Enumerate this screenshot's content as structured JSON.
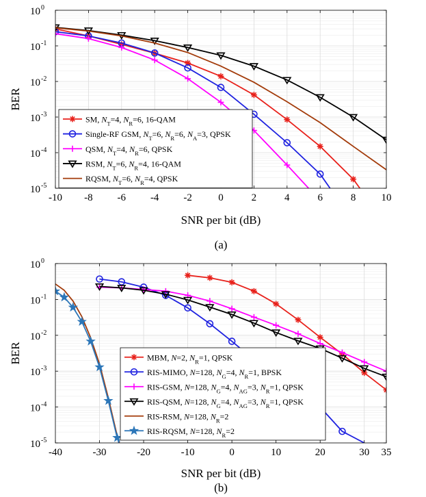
{
  "chart_data": [
    {
      "type": "line",
      "panel": "(a)",
      "xlabel": "SNR per bit (dB)",
      "ylabel": "BER",
      "xlim": [
        -10,
        10
      ],
      "ylim": [
        1e-05,
        1
      ],
      "yscale": "log",
      "xticks": [
        -10,
        -8,
        -6,
        -4,
        -2,
        0,
        2,
        4,
        6,
        8,
        10
      ],
      "xtick_labels": [
        "-10",
        "-8",
        "-6",
        "-4",
        "-2",
        "0",
        "2",
        "4",
        "6",
        "8",
        "10"
      ],
      "yticks": [
        1,
        0.1,
        0.01,
        0.001,
        0.0001,
        1e-05
      ],
      "ytick_labels": [
        {
          "base": "10",
          "exp": "0"
        },
        {
          "base": "10",
          "exp": "-1"
        },
        {
          "base": "10",
          "exp": "-2"
        },
        {
          "base": "10",
          "exp": "-3"
        },
        {
          "base": "10",
          "exp": "-4"
        },
        {
          "base": "10",
          "exp": "-5"
        }
      ],
      "grid": true,
      "legend_position": "bottom-left",
      "series": [
        {
          "name": "SM, N_T=4, N_R=6, 16-QAM",
          "legend": [
            {
              "t": "SM, "
            },
            {
              "t": "N",
              "i": true
            },
            {
              "t": "T",
              "s": true
            },
            {
              "t": "=4, "
            },
            {
              "t": "N",
              "i": true
            },
            {
              "t": "R",
              "s": true
            },
            {
              "t": "=6, 16-QAM"
            }
          ],
          "color": "#e8211b",
          "marker": "asterisk",
          "x": [
            -10,
            -8,
            -6,
            -4,
            -2,
            0,
            2,
            4,
            6,
            8,
            8.4
          ],
          "y": [
            0.3,
            0.19,
            0.11,
            0.062,
            0.033,
            0.014,
            0.0042,
            0.00085,
            0.00015,
            1.8e-05,
            1e-05
          ]
        },
        {
          "name": "Single-RF GSM, N_T=6, N_R=6, N_A=3, QPSK",
          "legend": [
            {
              "t": "Single-RF GSM, "
            },
            {
              "t": "N",
              "i": true
            },
            {
              "t": "T",
              "s": true
            },
            {
              "t": "=6, "
            },
            {
              "t": "N",
              "i": true
            },
            {
              "t": "R",
              "s": true
            },
            {
              "t": "=6, "
            },
            {
              "t": "N",
              "i": true
            },
            {
              "t": "A",
              "s": true
            },
            {
              "t": "=3, QPSK"
            }
          ],
          "color": "#1f22e0",
          "marker": "circle",
          "x": [
            -10,
            -8,
            -6,
            -4,
            -2,
            0,
            2,
            4,
            6,
            6.6
          ],
          "y": [
            0.25,
            0.19,
            0.12,
            0.063,
            0.024,
            0.0068,
            0.0012,
            0.00019,
            2.5e-05,
            1e-05
          ]
        },
        {
          "name": "QSM, N_T=4, N_R=6, QPSK",
          "legend": [
            {
              "t": "QSM, "
            },
            {
              "t": "N",
              "i": true
            },
            {
              "t": "T",
              "s": true
            },
            {
              "t": "=4, "
            },
            {
              "t": "N",
              "i": true
            },
            {
              "t": "R",
              "s": true
            },
            {
              "t": "=6, QPSK"
            }
          ],
          "color": "#ff00ff",
          "marker": "plus",
          "x": [
            -10,
            -8,
            -6,
            -4,
            -2,
            0,
            2,
            4,
            5.3
          ],
          "y": [
            0.22,
            0.16,
            0.09,
            0.04,
            0.012,
            0.0026,
            0.00042,
            4.5e-05,
            1e-05
          ]
        },
        {
          "name": "RSM, N_T=6, N_R=4, 16-QAM",
          "legend": [
            {
              "t": "RSM, "
            },
            {
              "t": "N",
              "i": true
            },
            {
              "t": "T",
              "s": true
            },
            {
              "t": "=6, "
            },
            {
              "t": "N",
              "i": true
            },
            {
              "t": "R",
              "s": true
            },
            {
              "t": "=4, 16-QAM"
            }
          ],
          "color": "#000000",
          "marker": "triangle-down",
          "x": [
            -10,
            -8,
            -6,
            -4,
            -2,
            0,
            2,
            4,
            6,
            8,
            10
          ],
          "y": [
            0.33,
            0.27,
            0.2,
            0.14,
            0.09,
            0.054,
            0.027,
            0.011,
            0.0036,
            0.001,
            0.00023
          ]
        },
        {
          "name": "RQSM, N_T=6, N_R=4, QPSK",
          "legend": [
            {
              "t": "RQSM, "
            },
            {
              "t": "N",
              "i": true
            },
            {
              "t": "T",
              "s": true
            },
            {
              "t": "=6, "
            },
            {
              "t": "N",
              "i": true
            },
            {
              "t": "R",
              "s": true
            },
            {
              "t": "=4, QPSK"
            }
          ],
          "color": "#a33b0a",
          "marker": "none",
          "x": [
            -10,
            -8,
            -6,
            -4,
            -2,
            0,
            2,
            4,
            6,
            8,
            10
          ],
          "y": [
            0.32,
            0.26,
            0.19,
            0.12,
            0.065,
            0.027,
            0.0095,
            0.0027,
            0.0007,
            0.00015,
            3.3e-05
          ]
        }
      ]
    },
    {
      "type": "line",
      "panel": "(b)",
      "xlabel": "SNR per bit (dB)",
      "ylabel": "BER",
      "xlim": [
        -40,
        35
      ],
      "ylim": [
        1e-05,
        1
      ],
      "yscale": "log",
      "xticks": [
        -40,
        -30,
        -20,
        -10,
        0,
        10,
        20,
        30,
        35
      ],
      "xtick_labels": [
        "-40",
        "-30",
        "-20",
        "-10",
        "0",
        "10",
        "20",
        "30",
        "35"
      ],
      "yticks": [
        1,
        0.1,
        0.01,
        0.001,
        0.0001,
        1e-05
      ],
      "ytick_labels": [
        {
          "base": "10",
          "exp": "0"
        },
        {
          "base": "10",
          "exp": "-1"
        },
        {
          "base": "10",
          "exp": "-2"
        },
        {
          "base": "10",
          "exp": "-3"
        },
        {
          "base": "10",
          "exp": "-4"
        },
        {
          "base": "10",
          "exp": "-5"
        }
      ],
      "grid": true,
      "legend_position": "bottom-center",
      "series": [
        {
          "name": "MBM, N=2, N_R=1, QPSK",
          "legend": [
            {
              "t": "MBM, "
            },
            {
              "t": "N",
              "i": true
            },
            {
              "t": "=2, "
            },
            {
              "t": "N",
              "i": true
            },
            {
              "t": "R",
              "s": true
            },
            {
              "t": "=1, QPSK"
            }
          ],
          "color": "#e8211b",
          "marker": "asterisk",
          "x": [
            -10,
            -5,
            0,
            5,
            10,
            15,
            20,
            25,
            30,
            35
          ],
          "y": [
            0.47,
            0.4,
            0.3,
            0.17,
            0.075,
            0.027,
            0.0088,
            0.003,
            0.0009,
            0.0003
          ]
        },
        {
          "name": "RIS-MIMO, N=128, N_G=4, N_R=1, BPSK",
          "legend": [
            {
              "t": "RIS-MIMO, "
            },
            {
              "t": "N",
              "i": true
            },
            {
              "t": "=128, "
            },
            {
              "t": "N",
              "i": true
            },
            {
              "t": "G",
              "s": true
            },
            {
              "t": "=4, "
            },
            {
              "t": "N",
              "i": true
            },
            {
              "t": "R",
              "s": true
            },
            {
              "t": "=1, BPSK"
            }
          ],
          "color": "#1f22e0",
          "marker": "circle",
          "x": [
            -30,
            -25,
            -20,
            -15,
            -10,
            -5,
            0,
            5,
            10,
            15,
            20,
            25,
            30
          ],
          "y": [
            0.37,
            0.31,
            0.22,
            0.13,
            0.058,
            0.021,
            0.0068,
            0.0021,
            0.00075,
            0.00028,
            0.0001,
            2.1e-05,
            1e-05
          ]
        },
        {
          "name": "RIS-GSM, N=128, N_G=4, N_AG=3, N_R=1, QPSK",
          "legend": [
            {
              "t": "RIS-GSM, "
            },
            {
              "t": "N",
              "i": true
            },
            {
              "t": "=128, "
            },
            {
              "t": "N",
              "i": true
            },
            {
              "t": "G",
              "s": true
            },
            {
              "t": "=4, "
            },
            {
              "t": "N",
              "i": true
            },
            {
              "t": "AG",
              "s": true
            },
            {
              "t": "=3, "
            },
            {
              "t": "N",
              "i": true
            },
            {
              "t": "R",
              "s": true
            },
            {
              "t": "=1, QPSK"
            }
          ],
          "color": "#ff00ff",
          "marker": "plus",
          "x": [
            -30,
            -25,
            -20,
            -15,
            -10,
            -5,
            0,
            5,
            10,
            15,
            20,
            25,
            30,
            35
          ],
          "y": [
            0.22,
            0.21,
            0.19,
            0.17,
            0.13,
            0.09,
            0.055,
            0.032,
            0.019,
            0.011,
            0.0059,
            0.0033,
            0.0018,
            0.001
          ]
        },
        {
          "name": "RIS-QSM, N=128, N_G=4, N_AG=3, N_R=1, QPSK",
          "legend": [
            {
              "t": "RIS-QSM, "
            },
            {
              "t": "N",
              "i": true
            },
            {
              "t": "=128, "
            },
            {
              "t": "N",
              "i": true
            },
            {
              "t": "G",
              "s": true
            },
            {
              "t": "=4, "
            },
            {
              "t": "N",
              "i": true
            },
            {
              "t": "AG",
              "s": true
            },
            {
              "t": "=3, "
            },
            {
              "t": "N",
              "i": true
            },
            {
              "t": "R",
              "s": true
            },
            {
              "t": "=1, QPSK"
            }
          ],
          "color": "#000000",
          "marker": "triangle-down",
          "x": [
            -30,
            -25,
            -20,
            -15,
            -10,
            -5,
            0,
            5,
            10,
            15,
            20,
            25,
            30,
            35
          ],
          "y": [
            0.23,
            0.21,
            0.18,
            0.14,
            0.097,
            0.061,
            0.038,
            0.022,
            0.012,
            0.007,
            0.0043,
            0.0023,
            0.0012,
            0.0007
          ]
        },
        {
          "name": "RIS-RSM, N=128, N_R=2",
          "legend": [
            {
              "t": "RIS-RSM, "
            },
            {
              "t": "N",
              "i": true
            },
            {
              "t": "=128, "
            },
            {
              "t": "N",
              "i": true
            },
            {
              "t": "R",
              "s": true
            },
            {
              "t": "=2"
            }
          ],
          "color": "#a33b0a",
          "marker": "none",
          "x": [
            -40,
            -38,
            -36,
            -34,
            -32,
            -30,
            -28,
            -26,
            -25.5
          ],
          "y": [
            0.27,
            0.18,
            0.09,
            0.033,
            0.0085,
            0.0016,
            0.00018,
            1.6e-05,
            1e-05
          ]
        },
        {
          "name": "RIS-RQSM, N=128, N_R=2",
          "legend": [
            {
              "t": "RIS-RQSM, "
            },
            {
              "t": "N",
              "i": true
            },
            {
              "t": "=128, "
            },
            {
              "t": "N",
              "i": true
            },
            {
              "t": "R",
              "s": true
            },
            {
              "t": "=2"
            }
          ],
          "color": "#2c76b8",
          "marker": "star",
          "x": [
            -40,
            -38,
            -36,
            -34,
            -32,
            -30,
            -28,
            -26,
            -25.6
          ],
          "y": [
            0.17,
            0.115,
            0.06,
            0.024,
            0.0068,
            0.0013,
            0.00015,
            1.4e-05,
            1e-05
          ]
        }
      ]
    }
  ]
}
